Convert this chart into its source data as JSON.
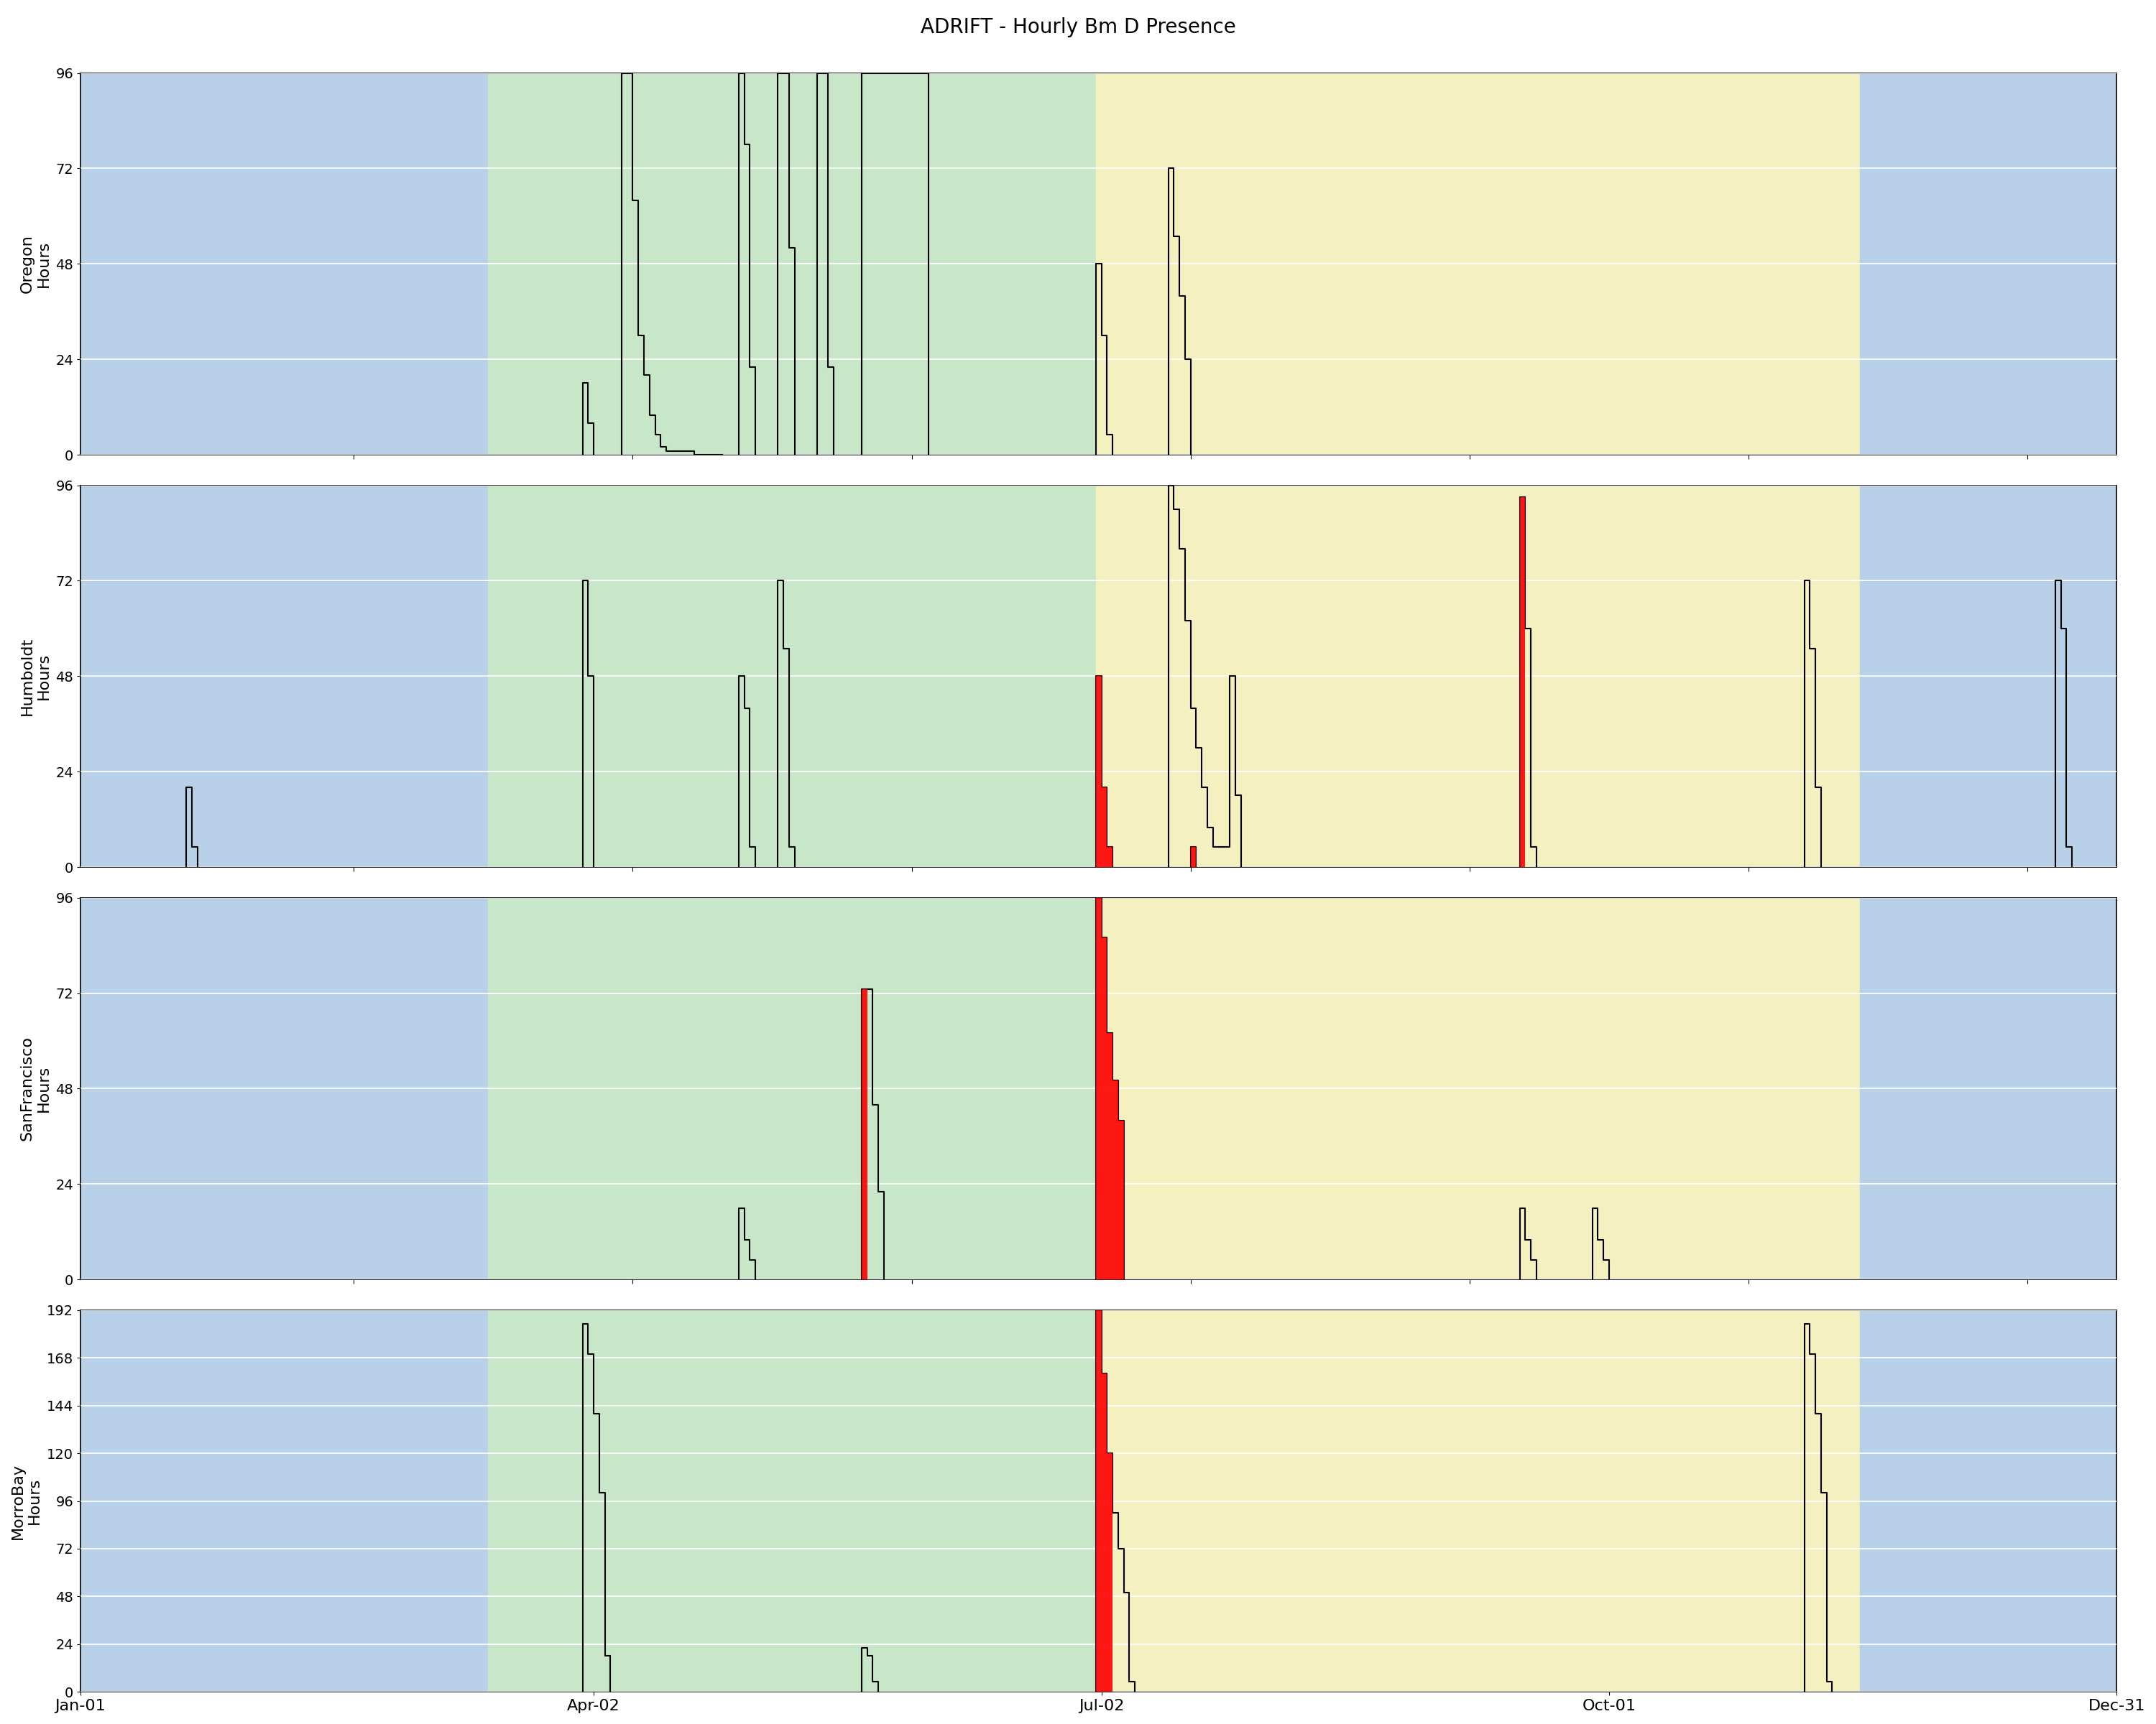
{
  "title": "ADRIFT - Hourly Bm D Presence",
  "winter_color": "#b8d0e8",
  "upwelling_color": "#c8e6c8",
  "post_upwelling_color": "#f5f0c0",
  "season_boundaries": {
    "winter1_start": 1,
    "winter1_end": 74,
    "upwelling_start": 74,
    "upwelling_end": 183,
    "post_upwelling_start": 183,
    "post_upwelling_end": 320,
    "winter2_start": 320,
    "winter2_end": 366
  },
  "subplots": [
    {
      "label": "Oregon",
      "ylabel": "Hours",
      "ylim": [
        0,
        96
      ],
      "yticks": [
        0,
        24,
        48,
        72,
        96
      ],
      "groups": [
        {
          "days": [
            91,
            92,
            93
          ],
          "hours": [
            18,
            8,
            0
          ],
          "red": [
            false,
            false,
            false
          ]
        },
        {
          "days": [
            98,
            99,
            100,
            101,
            102,
            103,
            104,
            105,
            106,
            107,
            108,
            109,
            110,
            111,
            112,
            113,
            114,
            115,
            116
          ],
          "hours": [
            96,
            96,
            64,
            30,
            20,
            10,
            5,
            2,
            1,
            1,
            1,
            1,
            1,
            0,
            0,
            0,
            0,
            0,
            0
          ],
          "red": [
            false,
            false,
            false,
            false,
            false,
            false,
            false,
            false,
            false,
            false,
            false,
            false,
            false,
            false,
            false,
            false,
            false,
            false,
            false
          ]
        },
        {
          "days": [
            119,
            120,
            121,
            122
          ],
          "hours": [
            96,
            78,
            22,
            0
          ],
          "red": [
            false,
            false,
            false,
            false
          ]
        },
        {
          "days": [
            126,
            127,
            128,
            129
          ],
          "hours": [
            96,
            96,
            52,
            0
          ],
          "red": [
            false,
            false,
            false,
            false
          ]
        },
        {
          "days": [
            133,
            134,
            135,
            136
          ],
          "hours": [
            96,
            96,
            22,
            0
          ],
          "red": [
            false,
            false,
            false,
            false
          ]
        },
        {
          "days": [
            141,
            142,
            143,
            144,
            145,
            146,
            147,
            148,
            149,
            150,
            151,
            152,
            153
          ],
          "hours": [
            96,
            96,
            96,
            96,
            96,
            96,
            96,
            96,
            96,
            96,
            96,
            96,
            0
          ],
          "red": [
            false,
            false,
            false,
            false,
            false,
            false,
            false,
            false,
            false,
            false,
            false,
            false,
            false
          ]
        },
        {
          "days": [
            183,
            184,
            185,
            186
          ],
          "hours": [
            48,
            30,
            5,
            0
          ],
          "red": [
            false,
            false,
            false,
            false
          ]
        },
        {
          "days": [
            196,
            197,
            198,
            199,
            200
          ],
          "hours": [
            72,
            55,
            40,
            24,
            0
          ],
          "red": [
            false,
            false,
            false,
            false,
            false
          ]
        }
      ]
    },
    {
      "label": "Humboldt",
      "ylabel": "Hours",
      "ylim": [
        0,
        96
      ],
      "yticks": [
        0,
        24,
        48,
        72,
        96
      ],
      "groups": [
        {
          "days": [
            20,
            21,
            22
          ],
          "hours": [
            20,
            5,
            0
          ],
          "red": [
            false,
            false,
            false
          ]
        },
        {
          "days": [
            91,
            92,
            93
          ],
          "hours": [
            72,
            48,
            0
          ],
          "red": [
            false,
            false,
            false
          ]
        },
        {
          "days": [
            119,
            120,
            121,
            122
          ],
          "hours": [
            48,
            40,
            5,
            0
          ],
          "red": [
            false,
            false,
            false,
            false
          ]
        },
        {
          "days": [
            126,
            127,
            128,
            129
          ],
          "hours": [
            72,
            55,
            5,
            0
          ],
          "red": [
            false,
            false,
            false,
            false
          ]
        },
        {
          "days": [
            183,
            184,
            185,
            186
          ],
          "hours": [
            48,
            20,
            5,
            0
          ],
          "red": [
            true,
            true,
            true,
            false
          ]
        },
        {
          "days": [
            196,
            197,
            198,
            199,
            200,
            201,
            202,
            203,
            204,
            205,
            206,
            207,
            208,
            209
          ],
          "hours": [
            96,
            90,
            80,
            62,
            40,
            30,
            20,
            10,
            5,
            5,
            5,
            48,
            18,
            0
          ],
          "red": [
            false,
            false,
            false,
            false,
            false,
            false,
            false,
            false,
            false,
            false,
            false,
            false,
            false,
            false
          ]
        },
        {
          "days": [
            200,
            201
          ],
          "hours": [
            5,
            0
          ],
          "red": [
            true,
            false
          ]
        },
        {
          "days": [
            259,
            260,
            261,
            262
          ],
          "hours": [
            93,
            60,
            5,
            0
          ],
          "red": [
            true,
            false,
            false,
            false
          ]
        },
        {
          "days": [
            310,
            311,
            312,
            313
          ],
          "hours": [
            72,
            55,
            20,
            0
          ],
          "red": [
            false,
            false,
            false,
            false
          ]
        },
        {
          "days": [
            355,
            356,
            357,
            358
          ],
          "hours": [
            72,
            60,
            5,
            0
          ],
          "red": [
            false,
            false,
            false,
            false
          ]
        }
      ]
    },
    {
      "label": "SanFrancisco",
      "ylabel": "Hours",
      "ylim": [
        0,
        96
      ],
      "yticks": [
        0,
        24,
        48,
        72,
        96
      ],
      "groups": [
        {
          "days": [
            119,
            120,
            121,
            122
          ],
          "hours": [
            18,
            10,
            5,
            0
          ],
          "red": [
            false,
            false,
            false,
            false
          ]
        },
        {
          "days": [
            141,
            142,
            143,
            144,
            145
          ],
          "hours": [
            73,
            73,
            44,
            22,
            0
          ],
          "red": [
            true,
            false,
            false,
            false,
            false
          ]
        },
        {
          "days": [
            183,
            184,
            185,
            186,
            187,
            188
          ],
          "hours": [
            96,
            86,
            62,
            50,
            40,
            0
          ],
          "red": [
            true,
            true,
            true,
            true,
            true,
            false
          ]
        },
        {
          "days": [
            259,
            260,
            261,
            262
          ],
          "hours": [
            18,
            10,
            5,
            0
          ],
          "red": [
            false,
            false,
            false,
            false
          ]
        },
        {
          "days": [
            272,
            273,
            274,
            275
          ],
          "hours": [
            18,
            10,
            5,
            0
          ],
          "red": [
            false,
            false,
            false,
            false
          ]
        }
      ]
    },
    {
      "label": "MorroBay",
      "ylabel": "Hours",
      "ylim": [
        0,
        192
      ],
      "yticks": [
        0,
        24,
        48,
        72,
        96,
        120,
        144,
        168,
        192
      ],
      "groups": [
        {
          "days": [
            91,
            92,
            93,
            94,
            95,
            96
          ],
          "hours": [
            185,
            170,
            140,
            100,
            18,
            0
          ],
          "red": [
            false,
            false,
            false,
            false,
            false,
            false
          ]
        },
        {
          "days": [
            141,
            142,
            143,
            144
          ],
          "hours": [
            22,
            18,
            5,
            0
          ],
          "red": [
            false,
            false,
            false,
            false
          ]
        },
        {
          "days": [
            183,
            184,
            185,
            186,
            187,
            188,
            189,
            190
          ],
          "hours": [
            192,
            160,
            120,
            90,
            72,
            50,
            5,
            0
          ],
          "red": [
            true,
            true,
            true,
            false,
            false,
            false,
            false,
            false
          ]
        },
        {
          "days": [
            310,
            311,
            312,
            313,
            314,
            315
          ],
          "hours": [
            185,
            170,
            140,
            100,
            5,
            0
          ],
          "red": [
            false,
            false,
            false,
            false,
            false,
            false
          ]
        }
      ]
    }
  ],
  "date_ticks": [
    {
      "label": "Jan-01",
      "day": 1
    },
    {
      "label": "Apr-02",
      "day": 93
    },
    {
      "label": "Jul-02",
      "day": 184
    },
    {
      "label": "Oct-01",
      "day": 275
    },
    {
      "label": "Dec-31",
      "day": 366
    }
  ],
  "x_min": 1,
  "x_max": 366
}
